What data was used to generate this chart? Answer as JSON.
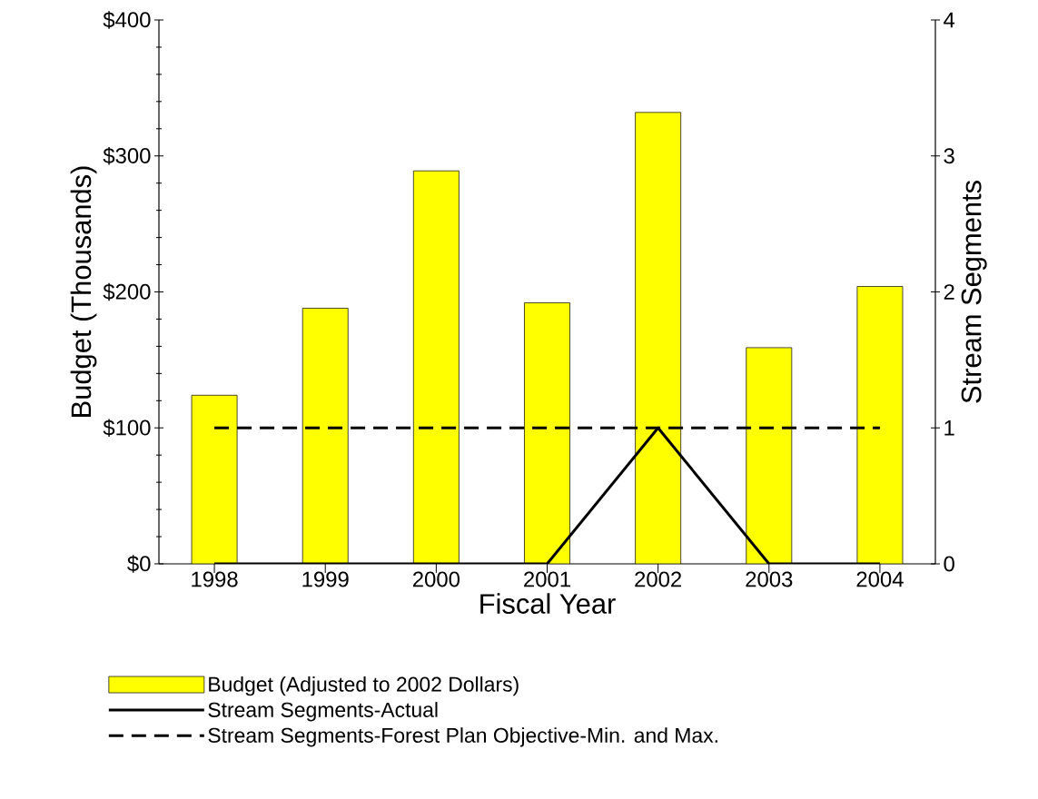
{
  "chart_data": {
    "type": "bar",
    "xlabel": "Fiscal Year",
    "ylabel": "Budget (Thousands)",
    "y2label": "Stream Segments",
    "categories": [
      "1998",
      "1999",
      "2000",
      "2001",
      "2002",
      "2003",
      "2004"
    ],
    "ylim": [
      0,
      400
    ],
    "yticks": [
      {
        "value": 0,
        "label": "$0"
      },
      {
        "value": 100,
        "label": "$100"
      },
      {
        "value": 200,
        "label": "$200"
      },
      {
        "value": 300,
        "label": "$300"
      },
      {
        "value": 400,
        "label": "$400"
      }
    ],
    "y2lim": [
      0,
      4
    ],
    "y2ticks": [
      0,
      1,
      2,
      3,
      4
    ],
    "legend": "bottom",
    "series": [
      {
        "name": "Budget (Adjusted to 2002 Dollars)",
        "color": "#ffff00",
        "values": [
          124,
          188,
          289,
          192,
          332,
          159,
          204
        ]
      },
      {
        "name": "Stream Segments-Actual",
        "type": "line",
        "axis": "y2",
        "color": "#000000",
        "line_style": "solid",
        "values": [
          0,
          0,
          0,
          0,
          1,
          0,
          0
        ]
      },
      {
        "name": "Stream Segments-Forest Plan Objective-Min. and Max.",
        "type": "line",
        "axis": "y2",
        "color": "#000000",
        "line_style": "dashed",
        "values": [
          1,
          1,
          1,
          1,
          1,
          1,
          1
        ]
      }
    ]
  }
}
